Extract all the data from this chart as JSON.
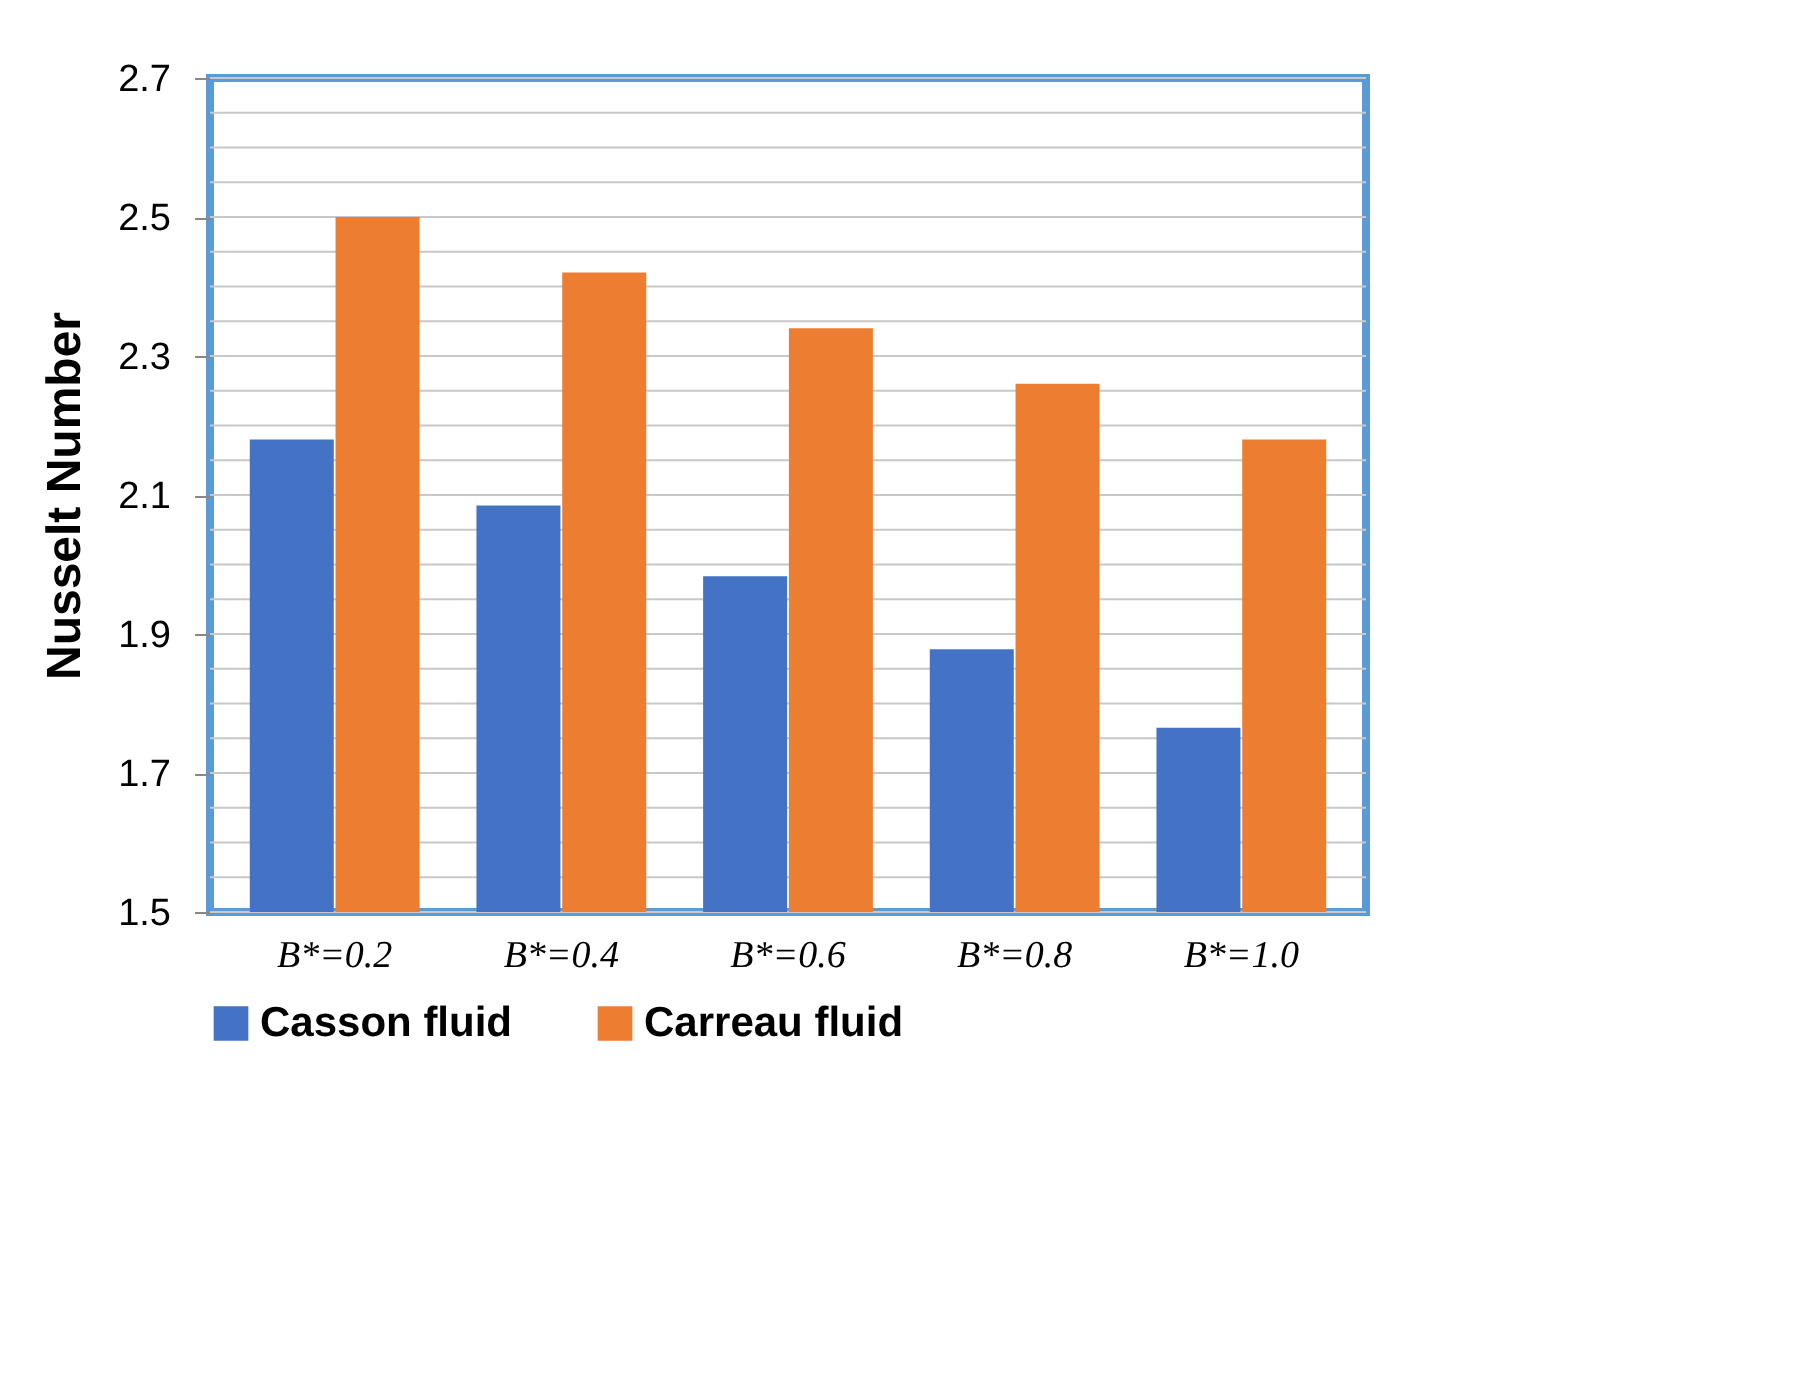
{
  "chart_data": {
    "type": "bar",
    "ylabel": "Nusselt Number",
    "categories": [
      "B*=0.2",
      "B*=0.4",
      "B*=0.6",
      "B*=0.8",
      "B*=1.0"
    ],
    "series": [
      {
        "name": "Casson fluid",
        "color": "#4472c4",
        "values": [
          2.18,
          2.085,
          1.983,
          1.878,
          1.765
        ]
      },
      {
        "name": "Carreau fluid",
        "color": "#ed7d31",
        "values": [
          2.5,
          2.42,
          2.34,
          2.26,
          2.18
        ]
      }
    ],
    "ylim": [
      1.5,
      2.7
    ],
    "yticks": [
      1.5,
      {
        "value": 1.55,
        "label": null
      },
      {
        "value": 1.6,
        "label": null
      },
      {
        "value": 1.65,
        "label": null
      },
      1.7,
      {
        "value": 1.75,
        "label": null
      },
      {
        "value": 1.8,
        "label": null
      },
      {
        "value": 1.85,
        "label": null
      },
      1.9,
      {
        "value": 1.95,
        "label": null
      },
      {
        "value": 2.0,
        "label": null
      },
      {
        "value": 2.05,
        "label": null
      },
      2.1,
      {
        "value": 2.15,
        "label": null
      },
      {
        "value": 2.2,
        "label": null
      },
      {
        "value": 2.25,
        "label": null
      },
      2.3,
      {
        "value": 2.35,
        "label": null
      },
      {
        "value": 2.4,
        "label": null
      },
      {
        "value": 2.45,
        "label": null
      },
      2.5,
      {
        "value": 2.55,
        "label": null
      },
      {
        "value": 2.6,
        "label": null
      },
      {
        "value": 2.65,
        "label": null
      },
      2.7
    ],
    "grid": "y",
    "legend": "bottom"
  }
}
